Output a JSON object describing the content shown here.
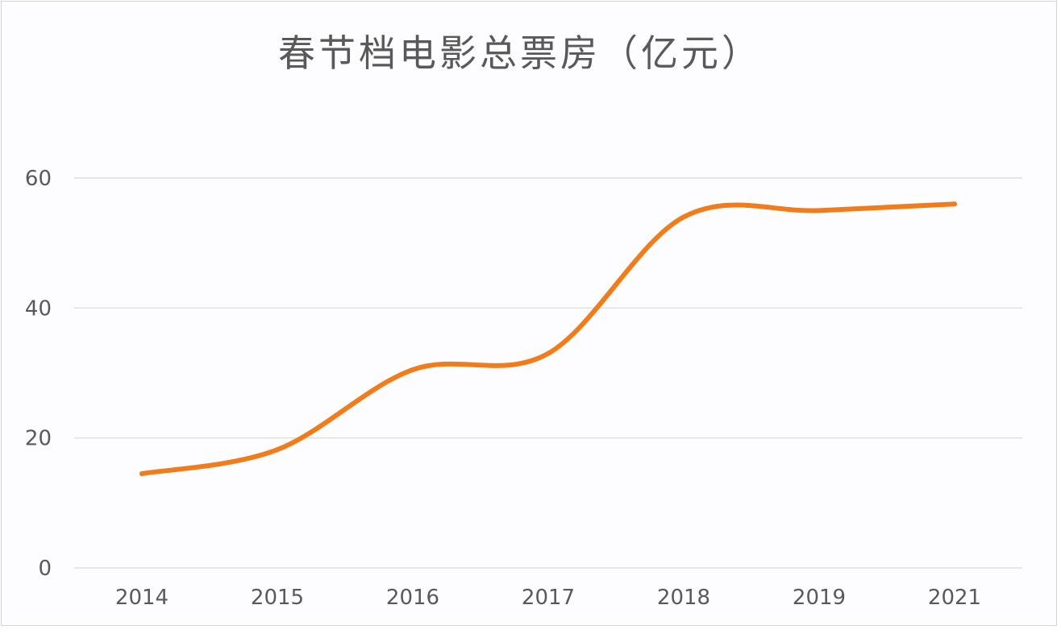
{
  "chart_data": {
    "type": "line",
    "title": "春节档电影总票房（亿元）",
    "categories": [
      "2014",
      "2015",
      "2016",
      "2017",
      "2018",
      "2019",
      "2021"
    ],
    "series": [
      {
        "values": [
          14.5,
          18.2,
          30.5,
          33.0,
          54.0,
          55.0,
          56.0
        ],
        "color": "#f07c1c"
      }
    ],
    "yticks": [
      0,
      20,
      40,
      60
    ],
    "ylim": [
      0,
      60
    ],
    "grid": true,
    "smooth": true,
    "legend": "none"
  }
}
